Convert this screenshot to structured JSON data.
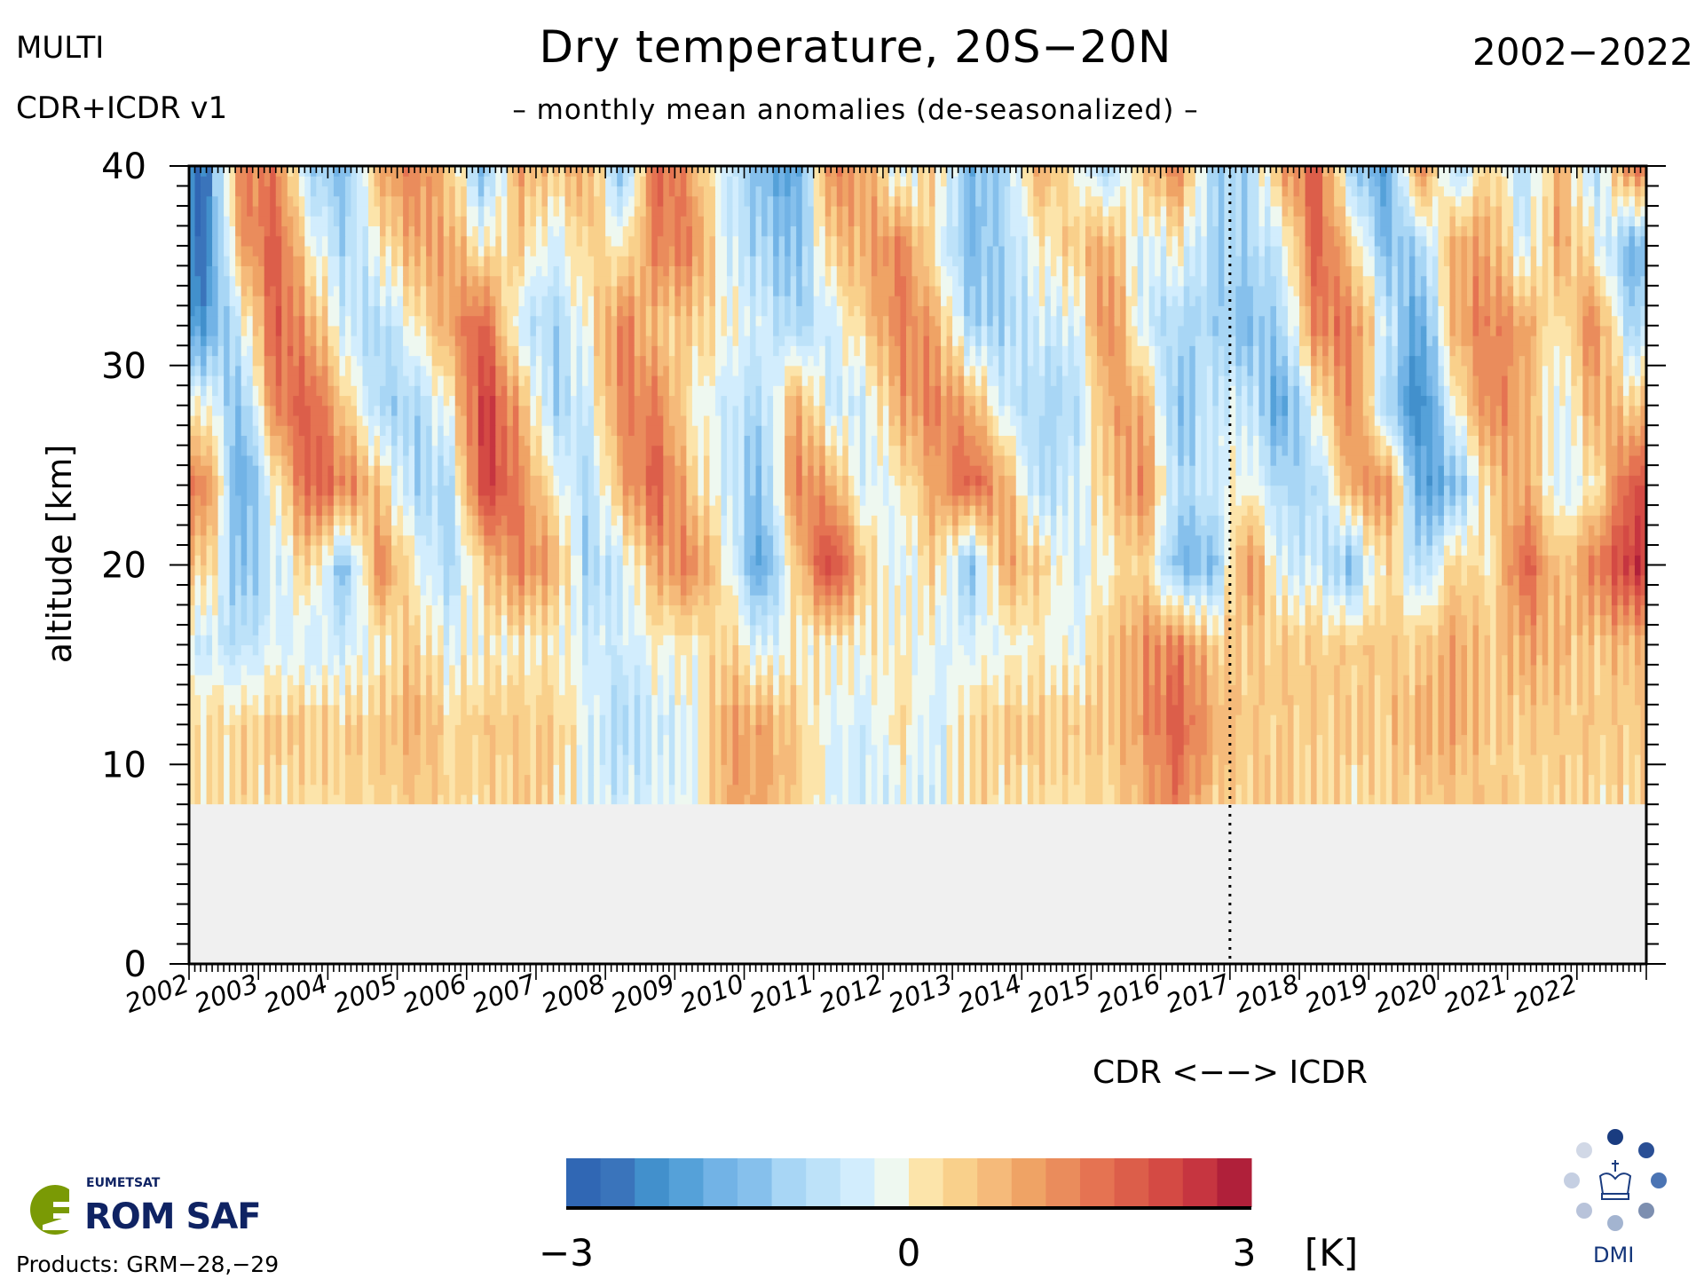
{
  "header": {
    "left_line1": "MULTI",
    "left_line2": "CDR+ICDR v1",
    "title": "Dry temperature, 20S−20N",
    "subtitle": "– monthly mean anomalies (de-seasonalized) –",
    "period": "2002−2022"
  },
  "footer": {
    "products": "Products: GRM−28,−29",
    "logo_left": "EUMETSAT ROM SAF",
    "logo_right": "DMI"
  },
  "chart_data": {
    "type": "heatmap",
    "title": "Dry temperature, 20S−20N",
    "subtitle": "– monthly mean anomalies (de-seasonalized) –",
    "xlabel": "",
    "ylabel": "altitude [km]",
    "xlim": [
      2002,
      2023
    ],
    "ylim": [
      0,
      40
    ],
    "x_ticks": [
      "2002",
      "2003",
      "2004",
      "2005",
      "2006",
      "2007",
      "2008",
      "2009",
      "2010",
      "2011",
      "2012",
      "2013",
      "2014",
      "2015",
      "2016",
      "2017",
      "2018",
      "2019",
      "2020",
      "2021",
      "2022"
    ],
    "y_ticks": [
      "0",
      "10",
      "20",
      "30",
      "40"
    ],
    "data_bottom_km": 8,
    "no_data_color": "#f0f0f0",
    "divider": {
      "x": 2017,
      "label": "CDR <−−> ICDR",
      "style": "dotted"
    },
    "colorbar": {
      "min": -3,
      "max": 3,
      "unit": "[K]",
      "tick_labels": [
        "−3",
        "0",
        "3"
      ],
      "colors": [
        "#3067b4",
        "#3a74bb",
        "#4290cc",
        "#55a1d9",
        "#72b3e6",
        "#86c0ec",
        "#a8d6f5",
        "#bde2f9",
        "#d2edfd",
        "#eef8f0",
        "#fce4aa",
        "#f9d08b",
        "#f5ba7a",
        "#efa365",
        "#ea8c5c",
        "#e57352",
        "#dc5e4a",
        "#d44a44",
        "#c63540",
        "#b0203a"
      ]
    },
    "grid_note_time_step": "half-year",
    "altitudes_km": [
      40,
      36,
      32,
      28,
      24,
      20,
      16,
      12,
      8
    ],
    "time_start": [
      2002.25,
      2002.75,
      2003.25,
      2003.75,
      2004.25,
      2004.75,
      2005.25,
      2005.75,
      2006.25,
      2006.75,
      2007.25,
      2007.75,
      2008.25,
      2008.75,
      2009.25,
      2009.75,
      2010.25,
      2010.75,
      2011.25,
      2011.75,
      2012.25,
      2012.75,
      2013.25,
      2013.75,
      2014.25,
      2014.75,
      2015.25,
      2015.75,
      2016.25,
      2016.75,
      2017.25,
      2017.75,
      2018.25,
      2018.75,
      2019.25,
      2019.75,
      2020.25,
      2020.75,
      2021.25,
      2021.75,
      2022.25,
      2022.75
    ],
    "values_K": [
      [
        -2.5,
        -2.5,
        -2,
        0,
        1.5,
        0.5,
        -0.5,
        0.3,
        0.2
      ],
      [
        1.5,
        1,
        -0.5,
        -1.5,
        -2,
        -1.5,
        -0.8,
        0.3,
        0.2
      ],
      [
        1.5,
        2,
        2,
        1.5,
        0,
        -0.5,
        -0.3,
        0.5,
        0.3
      ],
      [
        -1,
        0,
        1,
        2,
        2,
        0.5,
        -0.5,
        0.5,
        0.2
      ],
      [
        -1.5,
        -1,
        -0.5,
        0.5,
        1.5,
        -1.5,
        -0.5,
        0.4,
        0.3
      ],
      [
        1,
        0,
        -1,
        -1,
        0.5,
        1.5,
        0,
        0.5,
        0.3
      ],
      [
        1.5,
        1,
        0,
        -1,
        -1,
        0,
        0.5,
        1,
        0.5
      ],
      [
        0.5,
        1,
        1,
        0,
        -1,
        -1,
        -0.3,
        0.3,
        0.3
      ],
      [
        -1.5,
        0,
        2,
        2.5,
        2.5,
        0.5,
        0,
        0.5,
        0.3
      ],
      [
        1,
        0.5,
        -0.5,
        1,
        1.5,
        1.5,
        0,
        0.5,
        0.5
      ],
      [
        0.5,
        -0.5,
        -1,
        -1,
        0,
        1,
        0,
        0.5,
        0.3
      ],
      [
        1,
        0.5,
        0,
        -0.5,
        -1,
        -1,
        -0.5,
        -0.3,
        -0.3
      ],
      [
        -1.5,
        0,
        1.5,
        1.5,
        1,
        -0.5,
        -0.5,
        -1,
        -0.5
      ],
      [
        2,
        1.5,
        0.5,
        1.5,
        2,
        1,
        0,
        -0.5,
        -0.3
      ],
      [
        1,
        1.5,
        0.5,
        0,
        0.5,
        1.5,
        0,
        -0.3,
        -0.3
      ],
      [
        -0.5,
        -0.5,
        0,
        -0.5,
        -0.5,
        0,
        0.5,
        1,
        1
      ],
      [
        -1.5,
        -1,
        -0.5,
        -1,
        -1.5,
        -2,
        -0.5,
        1,
        1
      ],
      [
        -2,
        -1.5,
        -1,
        1,
        1.5,
        0.5,
        0,
        0.5,
        0.5
      ],
      [
        1.5,
        0.5,
        -0.5,
        -0.5,
        1,
        2.5,
        0,
        -0.3,
        -0.3
      ],
      [
        1,
        1,
        0.5,
        -0.5,
        -0.5,
        0.5,
        0,
        -0.5,
        -0.5
      ],
      [
        -0.5,
        1.5,
        1.5,
        1,
        0,
        -0.5,
        0,
        0.3,
        -0.3
      ],
      [
        0.5,
        0,
        1,
        1.5,
        1,
        0.5,
        -0.3,
        -0.5,
        -0.5
      ],
      [
        -1.5,
        -1.5,
        -1,
        1,
        2,
        -1.5,
        -0.3,
        0.3,
        0.3
      ],
      [
        -1,
        -1,
        -1,
        -0.5,
        1,
        1,
        -0.2,
        0.5,
        0.2
      ],
      [
        1,
        0,
        -0.5,
        -1,
        -1,
        0.5,
        0,
        0.5,
        0.3
      ],
      [
        0,
        0.5,
        -0.5,
        -1,
        -0.5,
        -0.5,
        -0.3,
        0.5,
        0.2
      ],
      [
        -1,
        1,
        1.5,
        1,
        0.5,
        0,
        0.5,
        0.5,
        0.3
      ],
      [
        0.5,
        -0.5,
        -0.5,
        1,
        1.5,
        0.5,
        1.2,
        1.2,
        0.8
      ],
      [
        1.5,
        0,
        -1,
        -1.5,
        -1,
        -1.5,
        1.5,
        2,
        1.5
      ],
      [
        -1,
        -1,
        -1,
        -0.5,
        -0.5,
        -1.5,
        0.5,
        1,
        0.5
      ],
      [
        -1,
        -1,
        -1.5,
        -0.5,
        0,
        1.5,
        0.5,
        0.5,
        0.5
      ],
      [
        1,
        -0.5,
        -1,
        -2,
        -1,
        -0.5,
        0.5,
        0.5,
        0.5
      ],
      [
        2,
        2,
        1.5,
        0,
        -1,
        -0.5,
        0.5,
        0.5,
        0.3
      ],
      [
        -1,
        0.5,
        1.5,
        1.5,
        1,
        -1.5,
        0.5,
        0.5,
        0.3
      ],
      [
        -2,
        -1.5,
        -0.5,
        -1,
        1.5,
        0.5,
        0.5,
        0.5,
        0.3
      ],
      [
        1.5,
        -1,
        -2,
        -2.5,
        -2,
        -1,
        0.5,
        0.8,
        0.5
      ],
      [
        -1,
        1,
        1,
        0,
        -1.5,
        0.5,
        1,
        1,
        0.5
      ],
      [
        0.5,
        1,
        1.5,
        1.5,
        0.5,
        0,
        0.5,
        0.5,
        0.5
      ],
      [
        -1,
        -0.5,
        1,
        1,
        1,
        2,
        1,
        0.5,
        0.3
      ],
      [
        1,
        1,
        0,
        -0.5,
        -0.5,
        0.5,
        0.8,
        0.5,
        0.3
      ],
      [
        -1,
        0,
        1.5,
        1,
        0,
        1.5,
        0.5,
        0.5,
        0.3
      ],
      [
        1.5,
        -1.5,
        -1,
        0.5,
        2,
        2.5,
        0.8,
        0.5,
        0.3
      ]
    ]
  }
}
